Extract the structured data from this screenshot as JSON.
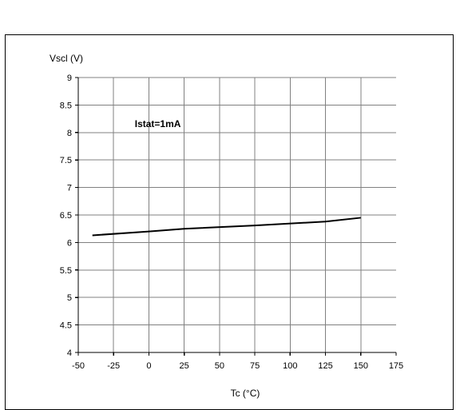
{
  "chart_data": {
    "type": "line",
    "title": "",
    "xlabel": "Tc (°C)",
    "ylabel": "Vscl (V)",
    "xlim": [
      -50,
      175
    ],
    "ylim": [
      4,
      9
    ],
    "x_ticks": [
      -50,
      -25,
      0,
      25,
      50,
      75,
      100,
      125,
      150,
      175
    ],
    "x_tick_labels": [
      "-50",
      "-25",
      "0",
      "25",
      "50",
      "75",
      "100",
      "125",
      "150",
      "175"
    ],
    "y_ticks": [
      4,
      4.5,
      5,
      5.5,
      6,
      6.5,
      7,
      7.5,
      8,
      8.5,
      9
    ],
    "y_tick_labels": [
      "4",
      "4.5",
      "5",
      "5.5",
      "6",
      "6.5",
      "7",
      "7.5",
      "8",
      "8.5",
      "9"
    ],
    "grid": true,
    "annotation": {
      "text": "Istat=1mA",
      "x": -10,
      "y": 8.1
    },
    "series": [
      {
        "x": [
          -40,
          0,
          25,
          75,
          125,
          150
        ],
        "y": [
          6.13,
          6.2,
          6.25,
          6.31,
          6.38,
          6.45
        ]
      }
    ],
    "line_color": "#000000"
  }
}
